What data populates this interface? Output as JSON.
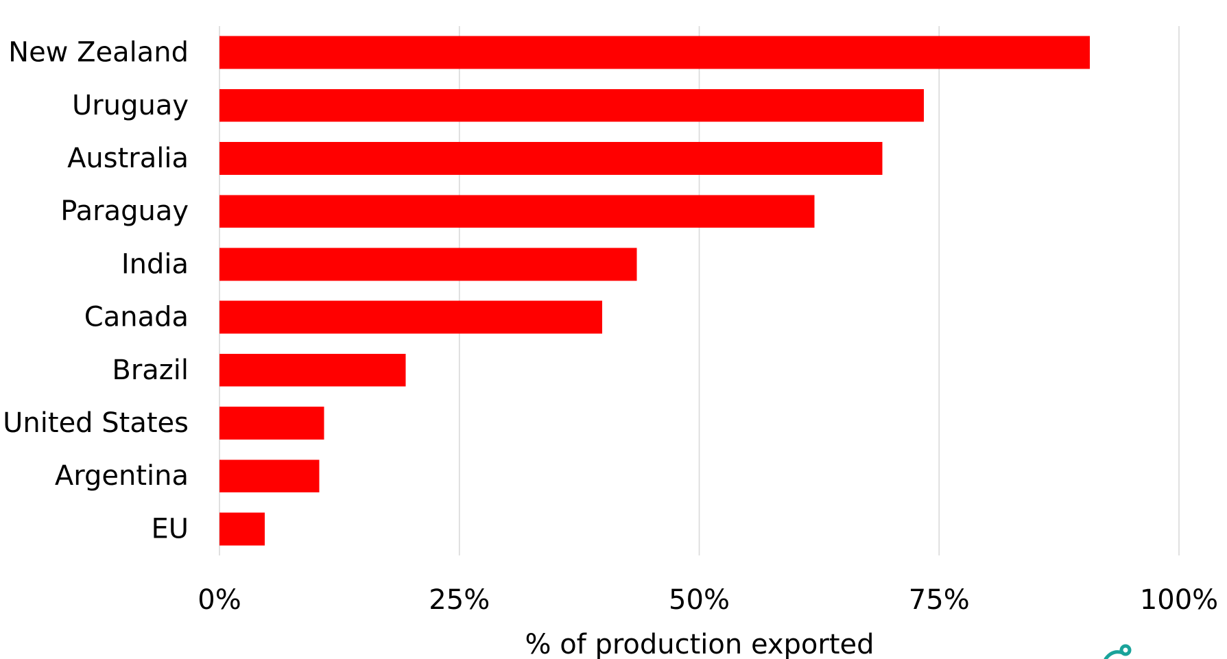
{
  "chart_data": {
    "type": "bar",
    "orientation": "horizontal",
    "categories": [
      "New Zealand",
      "Uruguay",
      "Australia",
      "Paraguay",
      "India",
      "Canada",
      "Brazil",
      "United States",
      "Argentina",
      "EU"
    ],
    "values": [
      90.7,
      73.4,
      69.1,
      62.0,
      43.5,
      39.9,
      19.4,
      10.9,
      10.4,
      4.7
    ],
    "xlabel": "% of production exported",
    "ylabel": "",
    "xlim": [
      0,
      100
    ],
    "x_ticks": [
      "0%",
      "25%",
      "50%",
      "75%",
      "100%"
    ],
    "grid": true,
    "legend": "none",
    "bar_color": "#ff0000",
    "grid_color": "#d9d9d9"
  },
  "logo": {
    "icon": "partial-teal-logo-icon",
    "color": "#1aa39a"
  }
}
